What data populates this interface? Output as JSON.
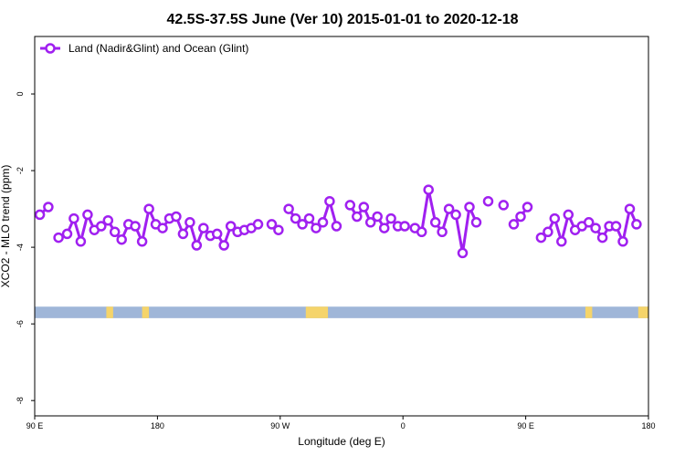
{
  "chart_data": {
    "type": "line",
    "title": "42.5S-37.5S June (Ver 10)   2015-01-01 to 2020-12-18",
    "xlabel": "Longitude (deg E)",
    "ylabel": "XCO2 - MLO trend (ppm)",
    "xlim": [
      90,
      450
    ],
    "ylim": [
      -8.4,
      1.5
    ],
    "x_ticks": [
      {
        "value": 90,
        "label": "90 E"
      },
      {
        "value": 162,
        "label": "180"
      },
      {
        "value": 234,
        "label": "90 W"
      },
      {
        "value": 306,
        "label": "0"
      },
      {
        "value": 378,
        "label": "90 E"
      },
      {
        "value": 450,
        "label": "180"
      }
    ],
    "y_ticks": [
      0,
      -2,
      -4,
      -6,
      -8
    ],
    "series": [
      {
        "name": "Land (Nadir&Glint) and Ocean (Glint)",
        "color": "#a020f0",
        "segments": [
          [
            [
              93,
              -3.15
            ],
            [
              98,
              -2.95
            ]
          ],
          [
            [
              104,
              -3.75
            ],
            [
              109,
              -3.65
            ],
            [
              113,
              -3.25
            ],
            [
              117,
              -3.85
            ],
            [
              121,
              -3.15
            ],
            [
              125,
              -3.55
            ],
            [
              129,
              -3.45
            ],
            [
              133,
              -3.3
            ],
            [
              137,
              -3.6
            ],
            [
              141,
              -3.8
            ],
            [
              145,
              -3.4
            ],
            [
              149,
              -3.45
            ],
            [
              153,
              -3.85
            ],
            [
              157,
              -3.0
            ],
            [
              161,
              -3.4
            ],
            [
              165,
              -3.5
            ],
            [
              169,
              -3.25
            ],
            [
              173,
              -3.2
            ],
            [
              177,
              -3.65
            ],
            [
              181,
              -3.35
            ],
            [
              185,
              -3.95
            ],
            [
              189,
              -3.5
            ],
            [
              193,
              -3.7
            ],
            [
              197,
              -3.65
            ],
            [
              201,
              -3.95
            ],
            [
              205,
              -3.45
            ],
            [
              209,
              -3.6
            ],
            [
              213,
              -3.55
            ],
            [
              217,
              -3.5
            ],
            [
              221,
              -3.4
            ]
          ],
          [
            [
              229,
              -3.4
            ],
            [
              233,
              -3.55
            ]
          ],
          [
            [
              239,
              -3.0
            ],
            [
              243,
              -3.25
            ],
            [
              247,
              -3.4
            ],
            [
              251,
              -3.25
            ],
            [
              255,
              -3.5
            ],
            [
              259,
              -3.35
            ],
            [
              263,
              -2.8
            ],
            [
              267,
              -3.45
            ]
          ],
          [
            [
              275,
              -2.9
            ],
            [
              279,
              -3.2
            ],
            [
              283,
              -2.95
            ],
            [
              287,
              -3.35
            ],
            [
              291,
              -3.2
            ],
            [
              295,
              -3.5
            ],
            [
              299,
              -3.25
            ],
            [
              303,
              -3.45
            ],
            [
              307,
              -3.45
            ]
          ],
          [
            [
              313,
              -3.5
            ],
            [
              317,
              -3.6
            ],
            [
              321,
              -2.5
            ],
            [
              325,
              -3.35
            ],
            [
              329,
              -3.6
            ],
            [
              333,
              -3.0
            ],
            [
              337,
              -3.15
            ],
            [
              341,
              -4.15
            ],
            [
              345,
              -2.95
            ],
            [
              349,
              -3.35
            ]
          ],
          [
            [
              356,
              -2.8
            ]
          ],
          [
            [
              365,
              -2.9
            ]
          ],
          [
            [
              371,
              -3.4
            ],
            [
              375,
              -3.2
            ],
            [
              379,
              -2.95
            ]
          ],
          [
            [
              387,
              -3.75
            ],
            [
              391,
              -3.6
            ],
            [
              395,
              -3.25
            ],
            [
              399,
              -3.85
            ],
            [
              403,
              -3.15
            ],
            [
              407,
              -3.55
            ],
            [
              411,
              -3.45
            ],
            [
              415,
              -3.35
            ],
            [
              419,
              -3.5
            ],
            [
              423,
              -3.75
            ],
            [
              427,
              -3.45
            ],
            [
              431,
              -3.45
            ],
            [
              435,
              -3.85
            ],
            [
              439,
              -3.0
            ],
            [
              443,
              -3.4
            ]
          ]
        ]
      }
    ],
    "surface_band": {
      "y_range": [
        -5.55,
        -5.85
      ],
      "ocean_color": "#9fb6d8",
      "land_color": "#f5d46a",
      "land_ranges": [
        [
          132,
          136
        ],
        [
          153,
          157
        ],
        [
          249,
          262
        ],
        [
          413,
          417
        ],
        [
          444,
          450
        ]
      ]
    },
    "legend_position": "top-left",
    "grid": false
  }
}
